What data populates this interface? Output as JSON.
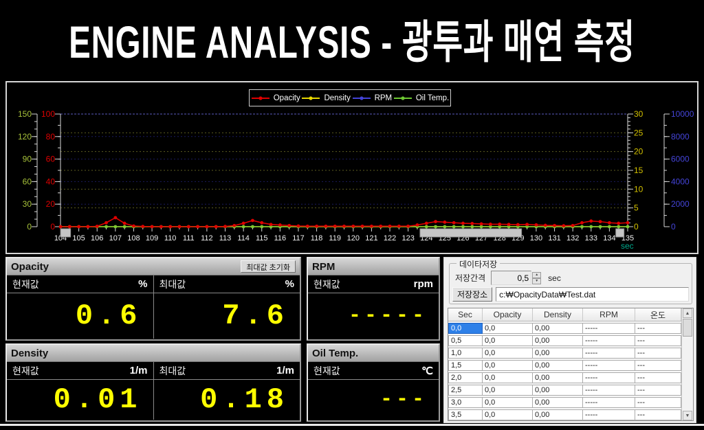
{
  "title": "ENGINE ANALYSIS  -  광투과 매연 측정",
  "chart_data": {
    "type": "line",
    "x_unit_label": "sec",
    "x_range": [
      104,
      135
    ],
    "x_major_ticks": [
      104,
      105,
      106,
      107,
      108,
      109,
      110,
      111,
      112,
      113,
      114,
      115,
      116,
      117,
      118,
      119,
      120,
      121,
      122,
      123,
      124,
      125,
      126,
      127,
      128,
      129,
      130,
      131,
      132,
      133,
      134,
      135
    ],
    "axes": [
      {
        "id": "oiltemp",
        "label": "Oil Temp.",
        "color": "#a7c23a",
        "ticks": [
          150,
          120,
          90,
          60,
          30,
          0
        ],
        "max": 150
      },
      {
        "id": "opacity",
        "label": "Opacity",
        "color": "#e00000",
        "ticks": [
          100,
          80,
          60,
          40,
          20,
          0
        ],
        "max": 100
      },
      {
        "id": "density",
        "label": "Density",
        "color": "#d2c000",
        "ticks": [
          30,
          25,
          20,
          15,
          10,
          5,
          0
        ],
        "max": 30
      },
      {
        "id": "rpm",
        "label": "RPM",
        "color": "#4444d8",
        "ticks": [
          10000,
          8000,
          6000,
          4000,
          2000,
          0
        ],
        "max": 10000
      }
    ],
    "legend": [
      {
        "label": "Opacity",
        "color": "#e00000"
      },
      {
        "label": "Density",
        "color": "#e8d800"
      },
      {
        "label": "RPM",
        "color": "#4444d8"
      },
      {
        "label": "Oil Temp.",
        "color": "#6ec832"
      }
    ],
    "series": [
      {
        "name": "Density",
        "color": "#e8d800",
        "axis": "density",
        "x_start": 104,
        "x_step": 0.5,
        "constant_value": 0,
        "count": 63,
        "marker": false
      },
      {
        "name": "Oil Temp.",
        "color": "#7ec832",
        "axis": "oiltemp",
        "x_start": 104,
        "x_step": 0.5,
        "constant_value": 0,
        "count": 63,
        "marker": true
      },
      {
        "name": "Opacity",
        "color": "#e00000",
        "axis": "opacity",
        "x_start": 104,
        "x_step": 0.5,
        "marker": true,
        "values": [
          0,
          0,
          0,
          0,
          0.3,
          3.5,
          8,
          3,
          0.6,
          0.2,
          0,
          0,
          0,
          0,
          0,
          0,
          0,
          0,
          0.2,
          1,
          3,
          5.5,
          3.5,
          2,
          1.5,
          1,
          0.6,
          0.4,
          0.4,
          0.4,
          0.4,
          0.4,
          0.4,
          0.4,
          0.4,
          0.4,
          0.4,
          0.4,
          0.4,
          1.5,
          3,
          4.5,
          4,
          3.5,
          3,
          2.8,
          2.5,
          2.2,
          2.2,
          2,
          1.8,
          2,
          1.6,
          1.2,
          1,
          0.8,
          1,
          3.5,
          5,
          4.5,
          3.5,
          3,
          3.5
        ]
      }
    ],
    "scroll_blocks_x": [
      [
        104,
        104.55
      ],
      [
        123.65,
        129.2
      ],
      [
        134.35,
        134.8
      ]
    ]
  },
  "panels": {
    "opacity": {
      "title": "Opacity",
      "reset_button": "최대값 초기화",
      "current_label": "현재값",
      "current_unit": "%",
      "current_value": "0.6",
      "max_label": "최대값",
      "max_unit": "%",
      "max_value": "7.6"
    },
    "density": {
      "title": "Density",
      "current_label": "현재값",
      "current_unit": "1/m",
      "current_value": "0.01",
      "max_label": "최대값",
      "max_unit": "1/m",
      "max_value": "0.18"
    },
    "rpm": {
      "title": "RPM",
      "current_label": "현재값",
      "current_unit": "rpm",
      "current_value": "-----"
    },
    "oiltemp": {
      "title": "Oil Temp.",
      "current_label": "현재값",
      "current_unit": "℃",
      "current_value": "---"
    }
  },
  "datasave": {
    "group_title": "데이타저장",
    "interval_label": "저장간격",
    "interval_value": "0,5",
    "interval_unit": "sec",
    "path_button": "저장장소",
    "path_value": "c:₩OpacityData₩Test.dat"
  },
  "table": {
    "columns": [
      "Sec",
      "Opacity",
      "Density",
      "RPM",
      "온도"
    ],
    "rows": [
      [
        "0,0",
        "0,0",
        "0,00",
        "-----",
        "---"
      ],
      [
        "0,5",
        "0,0",
        "0,00",
        "-----",
        "---"
      ],
      [
        "1,0",
        "0,0",
        "0,00",
        "-----",
        "---"
      ],
      [
        "1,5",
        "0,0",
        "0,00",
        "-----",
        "---"
      ],
      [
        "2,0",
        "0,0",
        "0,00",
        "-----",
        "---"
      ],
      [
        "2,5",
        "0,0",
        "0,00",
        "-----",
        "---"
      ],
      [
        "3,0",
        "0,0",
        "0,00",
        "-----",
        "---"
      ],
      [
        "3,5",
        "0,0",
        "0,00",
        "-----",
        "---"
      ]
    ],
    "selected_cell": [
      0,
      0
    ]
  },
  "colors": {
    "value_text": "#ffff00",
    "sec_label": "#00a88c",
    "selection": "#2e80e8"
  }
}
